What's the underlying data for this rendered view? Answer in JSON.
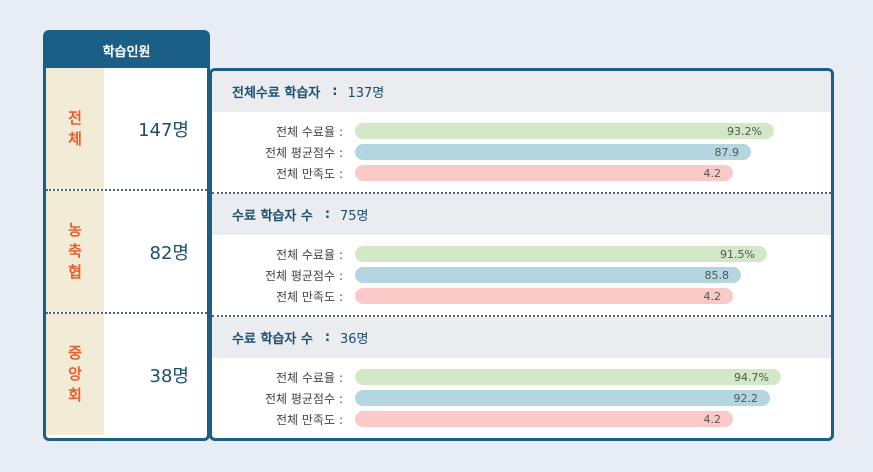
{
  "left": {
    "header": "학습인원",
    "rows": [
      {
        "category": [
          "전",
          "체"
        ],
        "count": "147명"
      },
      {
        "category": [
          "농",
          "축",
          "협"
        ],
        "count": "82명"
      },
      {
        "category": [
          "중",
          "앙",
          "회"
        ],
        "count": "38명"
      }
    ]
  },
  "sections": [
    {
      "title": "전체수료 학습자",
      "colon": ":",
      "value": "137명",
      "metrics": [
        {
          "label": "전체 수료율",
          "colon": ":",
          "value": "93.2%",
          "fill": 0.932,
          "color": "#d3e8c7"
        },
        {
          "label": "전체 평균점수",
          "colon": ":",
          "value": "87.9",
          "fill": 0.879,
          "color": "#b3d6e1"
        },
        {
          "label": "전체 만족도",
          "colon": ":",
          "value": "4.2",
          "fill": 0.84,
          "color": "#fcc9c9"
        }
      ]
    },
    {
      "title": "수료 학습자 수",
      "colon": ":",
      "value": "75명",
      "metrics": [
        {
          "label": "전체 수료율",
          "colon": ":",
          "value": "91.5%",
          "fill": 0.915,
          "color": "#d3e8c7"
        },
        {
          "label": "전체 평균점수",
          "colon": ":",
          "value": "85.8",
          "fill": 0.858,
          "color": "#b3d6e1"
        },
        {
          "label": "전체 만족도",
          "colon": ":",
          "value": "4.2",
          "fill": 0.84,
          "color": "#fcc9c9"
        }
      ]
    },
    {
      "title": "수료 학습자 수",
      "colon": ":",
      "value": "36명",
      "metrics": [
        {
          "label": "전체 수료율",
          "colon": ":",
          "value": "94.7%",
          "fill": 0.947,
          "color": "#d3e8c7"
        },
        {
          "label": "전체 평균점수",
          "colon": ":",
          "value": "92.2",
          "fill": 0.922,
          "color": "#b3d6e1"
        },
        {
          "label": "전체 만족도",
          "colon": ":",
          "value": "4.2",
          "fill": 0.84,
          "color": "#fcc9c9"
        }
      ]
    }
  ],
  "colors": {
    "accent": "#1b5f86",
    "category_text": "#e85f2e",
    "category_bg": "#f2ebd6",
    "section_head_bg": "#eaecef",
    "page_bg": "#e8edf5"
  }
}
